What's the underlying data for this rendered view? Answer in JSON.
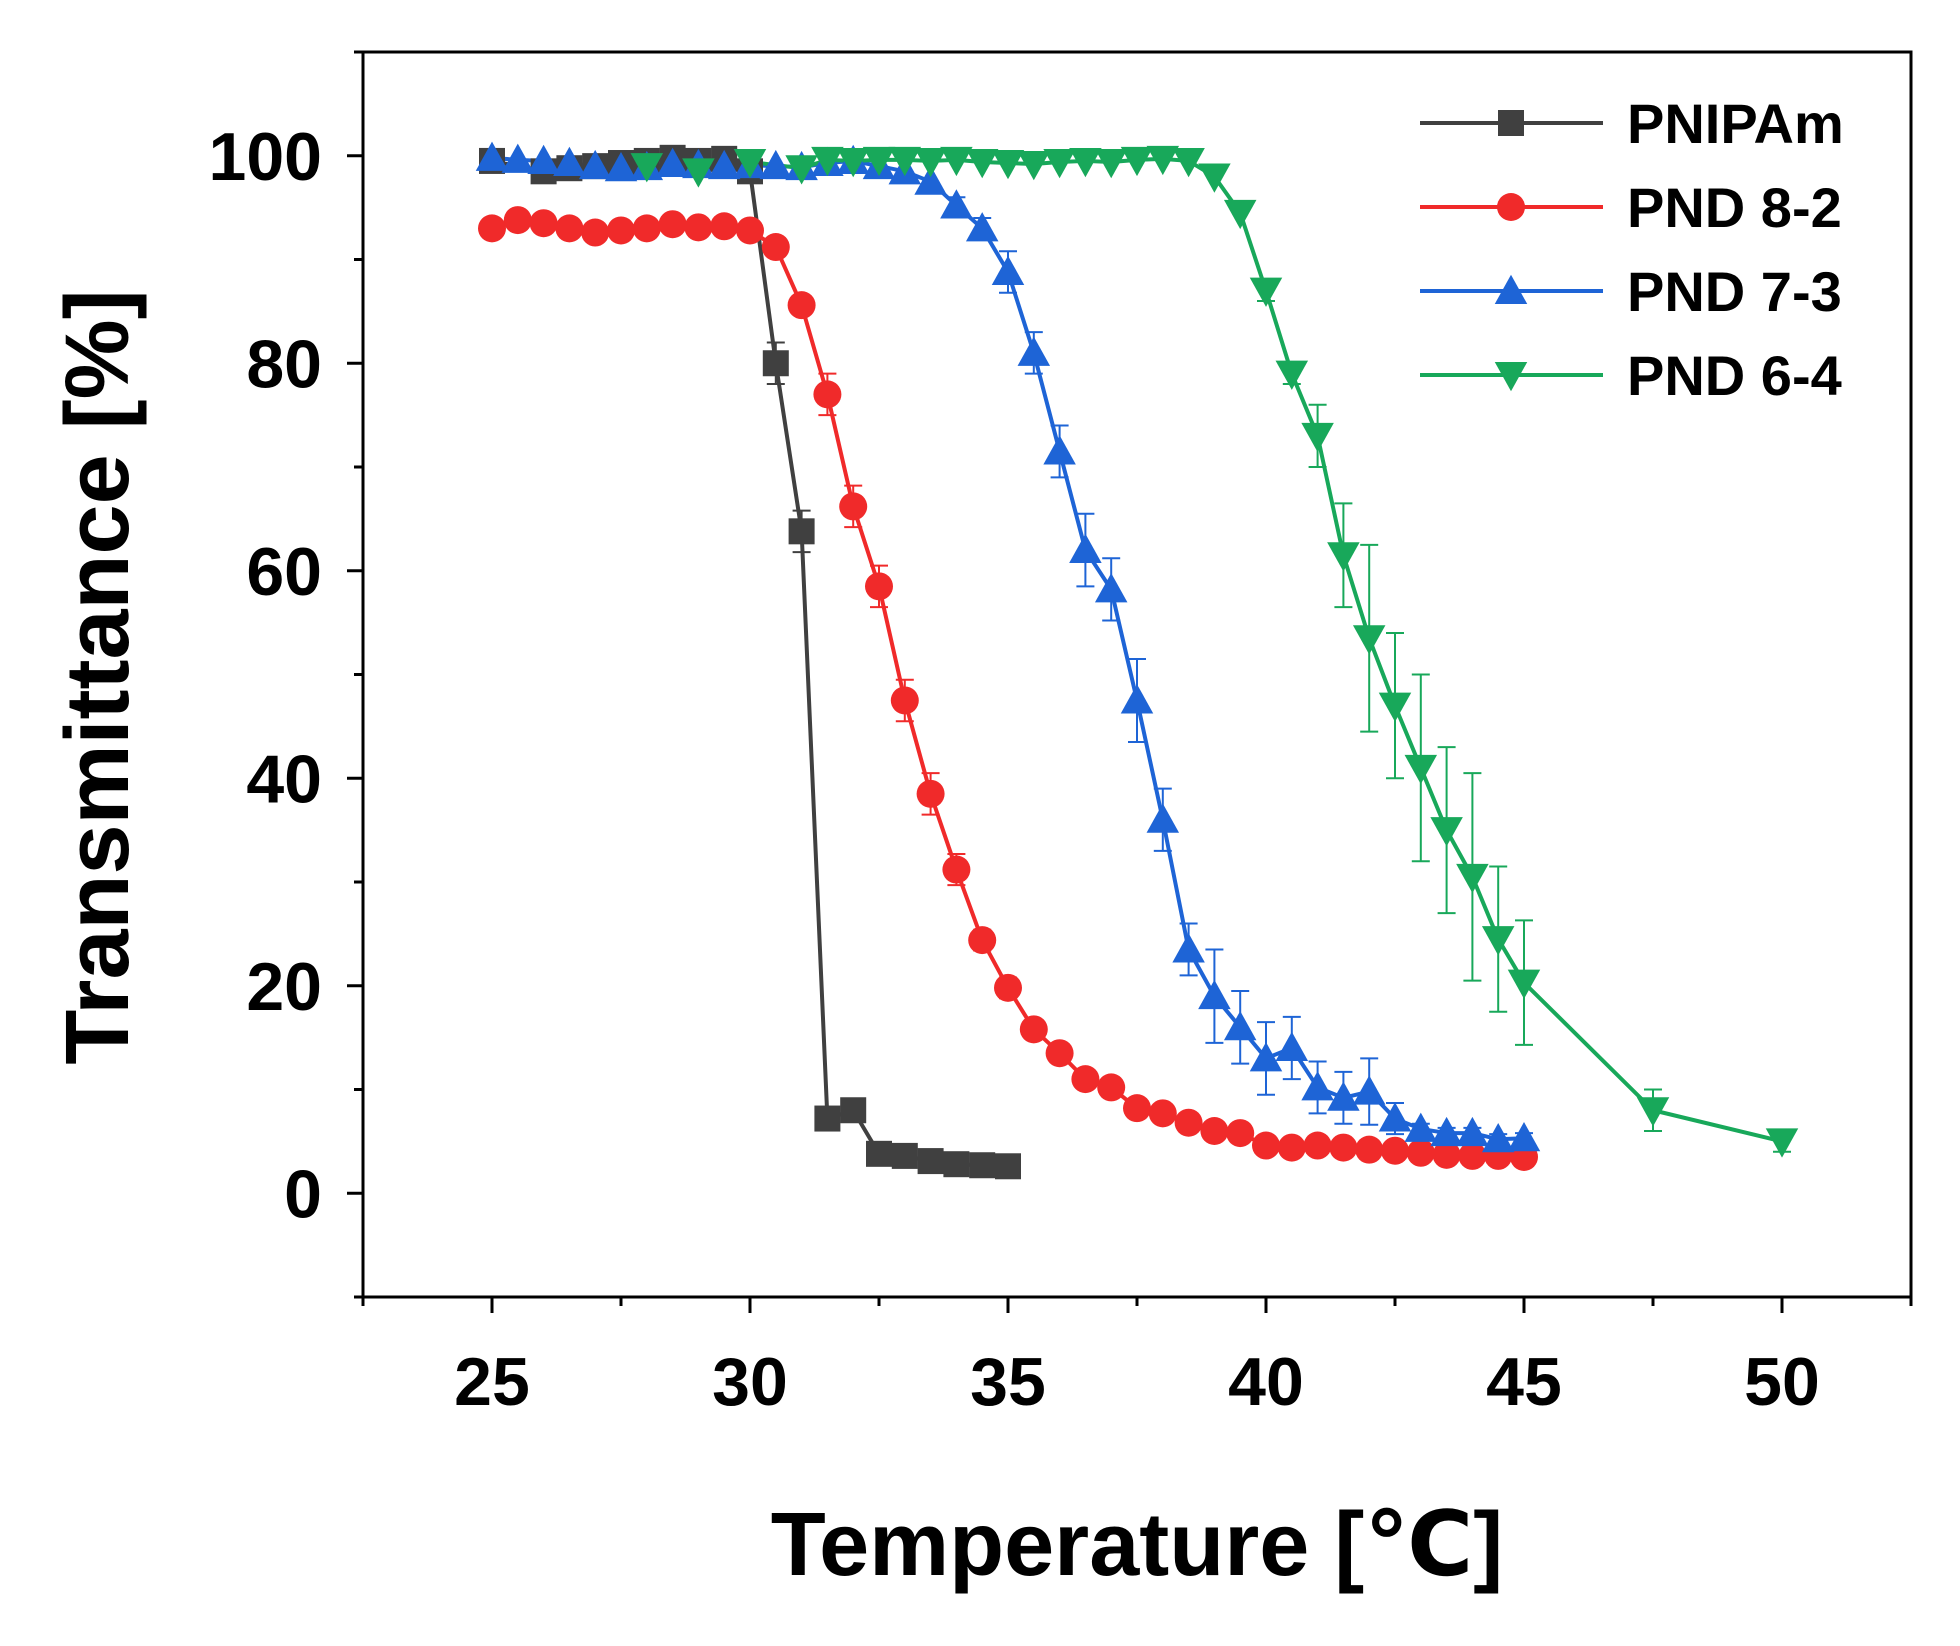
{
  "chart_data": {
    "type": "line",
    "xlabel": "Temperature [℃]",
    "ylabel": "Transmittance [%]",
    "xlim": [
      22.5,
      52.5
    ],
    "ylim": [
      -10,
      110
    ],
    "xticks": [
      25,
      30,
      35,
      40,
      45,
      50
    ],
    "yticks": [
      0,
      20,
      40,
      60,
      80,
      100
    ],
    "legend_position": "top-right",
    "series": [
      {
        "name": "PNIPAm",
        "color": "#404040",
        "marker": "square",
        "x": [
          25,
          26,
          26.5,
          27,
          27.5,
          28,
          28.5,
          29,
          29.5,
          30,
          30.5,
          31,
          31.5,
          32,
          32.5,
          33,
          33.5,
          34,
          34.5,
          35
        ],
        "y": [
          99.5,
          98.5,
          98.8,
          99,
          99.3,
          99.5,
          99.8,
          99.5,
          99.7,
          98.5,
          80,
          63.8,
          7.2,
          8,
          3.8,
          3.6,
          3.1,
          2.8,
          2.7,
          2.6
        ],
        "err": [
          0,
          0,
          0,
          0,
          0,
          0,
          0,
          0,
          0,
          0,
          2,
          2,
          0,
          0,
          0,
          0,
          0,
          0,
          0,
          0
        ]
      },
      {
        "name": "PND 8-2",
        "color": "#f02a2a",
        "marker": "circle",
        "x": [
          25,
          25.5,
          26,
          26.5,
          27,
          27.5,
          28,
          28.5,
          29,
          29.5,
          30,
          30.5,
          31,
          31.5,
          32,
          32.5,
          33,
          33.5,
          34,
          34.5,
          35,
          35.5,
          36,
          36.5,
          37,
          37.5,
          38,
          38.5,
          39,
          39.5,
          40,
          40.5,
          41,
          41.5,
          42,
          42.5,
          43,
          43.5,
          44,
          44.5,
          45
        ],
        "y": [
          93,
          93.8,
          93.5,
          93,
          92.6,
          92.8,
          93,
          93.4,
          93.1,
          93.2,
          92.8,
          91.2,
          85.6,
          77,
          66.2,
          58.5,
          47.5,
          38.5,
          31.2,
          24.4,
          19.8,
          15.8,
          13.5,
          11,
          10.2,
          8.2,
          7.7,
          6.8,
          6,
          5.8,
          4.6,
          4.4,
          4.6,
          4.4,
          4.2,
          4.1,
          3.9,
          3.7,
          3.6,
          3.6,
          3.5
        ],
        "err": [
          0,
          0,
          0,
          0,
          0,
          0,
          0,
          0,
          0,
          0,
          0,
          0,
          0,
          2,
          2,
          2,
          2,
          2,
          1.5,
          1,
          1,
          0.8,
          0.8,
          0.8,
          0.8,
          0.6,
          0.6,
          0.6,
          0.5,
          0.5,
          0.5,
          0,
          0,
          0,
          0,
          0,
          0,
          0,
          0,
          0,
          0
        ]
      },
      {
        "name": "PND 7-3",
        "color": "#1e64d6",
        "marker": "triangle-up",
        "x": [
          25,
          25.5,
          26,
          26.5,
          27,
          27.5,
          28,
          28.5,
          29,
          29.5,
          30,
          30.5,
          31,
          31.5,
          32,
          32.5,
          33,
          33.5,
          34,
          34.5,
          35,
          35.5,
          36,
          36.5,
          37,
          37.5,
          38,
          38.5,
          39,
          39.5,
          40,
          40.5,
          41,
          41.5,
          42,
          42.5,
          43,
          43.5,
          44,
          44.5,
          45
        ],
        "y": [
          99.8,
          99.6,
          99.5,
          99.3,
          99,
          98.8,
          98.9,
          99.2,
          99.1,
          99,
          99.1,
          99,
          98.9,
          99.3,
          99.5,
          99,
          98.5,
          97.5,
          95.2,
          93,
          88.8,
          81,
          71.5,
          62,
          58.2,
          47.5,
          36,
          23.5,
          19,
          16,
          13,
          14,
          10.2,
          9.2,
          9.8,
          7.2,
          6.2,
          5.8,
          5.8,
          5.2,
          5.3
        ],
        "err": [
          0,
          0,
          0,
          0,
          0,
          0,
          0,
          0,
          0,
          0,
          0,
          0,
          0,
          0,
          0,
          0,
          0,
          0,
          0.8,
          1,
          2,
          2,
          2.5,
          3.5,
          3,
          4,
          3,
          2.5,
          4.5,
          3.5,
          3.5,
          3,
          2.5,
          2.5,
          3.2,
          1.5,
          0.5,
          0.5,
          0.5,
          0.5,
          0.5
        ]
      },
      {
        "name": "PND 6-4",
        "color": "#18a85a",
        "marker": "triangle-down",
        "x": [
          28,
          29,
          30,
          31,
          31.5,
          32,
          32.5,
          33,
          33.5,
          34,
          34.5,
          35,
          35.5,
          36,
          36.5,
          37,
          37.5,
          38,
          38.5,
          39,
          39.5,
          40,
          40.5,
          41,
          41.5,
          42,
          42.5,
          43,
          43.5,
          44,
          44.5,
          45,
          47.5,
          50
        ],
        "y": [
          99,
          98.5,
          99.4,
          98.8,
          99.6,
          99.5,
          99.6,
          99.6,
          99.5,
          99.6,
          99.4,
          99.3,
          99.2,
          99.4,
          99.5,
          99.4,
          99.6,
          99.7,
          99.5,
          98,
          94.5,
          87,
          79,
          73,
          61.5,
          53.5,
          47,
          41,
          35,
          30.5,
          24.5,
          20.3,
          8,
          5
        ],
        "err": [
          0,
          0,
          0,
          0,
          0,
          0,
          0,
          0,
          0,
          0,
          0,
          0,
          0,
          0,
          0,
          0,
          0,
          0,
          0,
          0,
          0,
          1,
          1,
          3,
          5,
          9,
          7,
          9,
          8,
          10,
          7,
          6,
          2,
          1
        ]
      }
    ]
  }
}
